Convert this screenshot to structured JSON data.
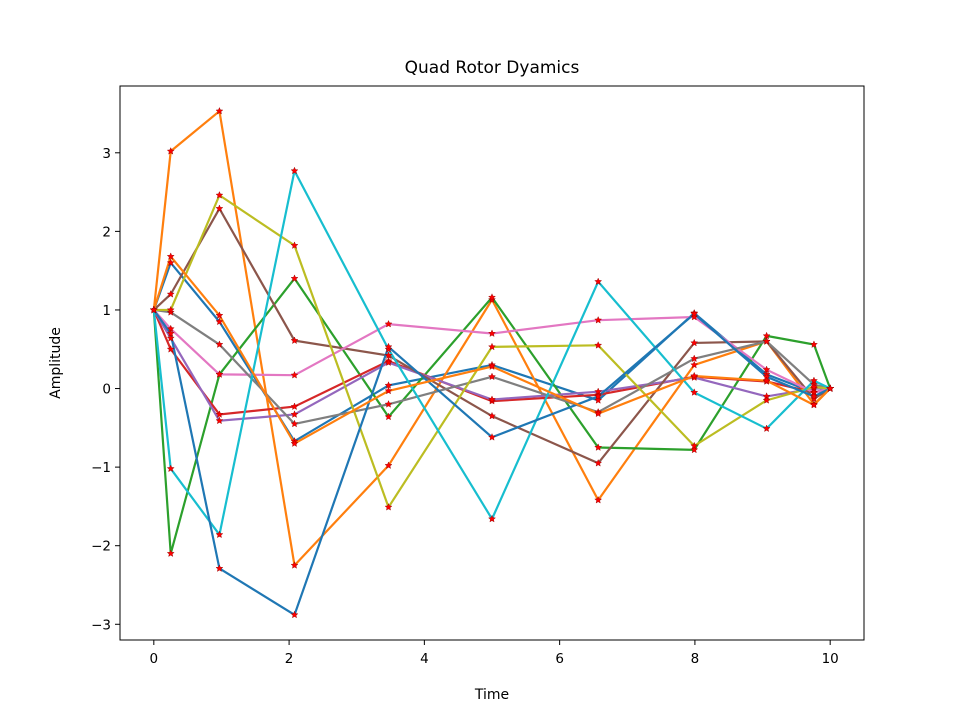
{
  "chart_data": {
    "type": "line",
    "title": "Quad Rotor Dyamics",
    "xlabel": "Time",
    "ylabel": "Amplitude",
    "xlim": [
      -0.5,
      10.5
    ],
    "ylim": [
      -3.2,
      3.85
    ],
    "xticks": [
      0,
      2,
      4,
      6,
      8,
      10
    ],
    "yticks": [
      -3,
      -2,
      -1,
      0,
      1,
      2,
      3
    ],
    "marker_color": "#ff0000",
    "x": [
      0,
      0.25,
      0.97,
      2.08,
      3.47,
      5.0,
      6.57,
      7.99,
      9.06,
      9.76,
      10.0
    ],
    "series": [
      {
        "color": "#1f77b4",
        "values": [
          1,
          1.6,
          0.85,
          -0.67,
          0.04,
          0.3,
          -0.15,
          0.96,
          0.18,
          -0.05,
          0
        ]
      },
      {
        "color": "#ff7f0e",
        "values": [
          1,
          3.02,
          3.53,
          -2.25,
          -0.98,
          1.13,
          -1.42,
          0.3,
          0.6,
          -0.2,
          0
        ]
      },
      {
        "color": "#2ca02c",
        "values": [
          1,
          -2.1,
          0.18,
          1.4,
          -0.36,
          1.16,
          -0.75,
          -0.78,
          0.67,
          0.56,
          0
        ]
      },
      {
        "color": "#d62728",
        "values": [
          1,
          0.5,
          -0.33,
          -0.23,
          0.35,
          -0.16,
          -0.08,
          0.15,
          0.09,
          -0.05,
          0
        ]
      },
      {
        "color": "#9467bd",
        "values": [
          1,
          0.64,
          -0.41,
          -0.33,
          0.33,
          -0.14,
          -0.04,
          0.14,
          -0.1,
          0.0,
          0
        ]
      },
      {
        "color": "#8c564b",
        "values": [
          1,
          1.2,
          2.29,
          0.61,
          0.42,
          -0.35,
          -0.95,
          0.58,
          0.6,
          -0.13,
          0
        ]
      },
      {
        "color": "#e377c2",
        "values": [
          1,
          0.76,
          0.18,
          0.17,
          0.82,
          0.7,
          0.87,
          0.91,
          0.24,
          -0.05,
          0
        ]
      },
      {
        "color": "#7f7f7f",
        "values": [
          1,
          0.97,
          0.56,
          -0.45,
          -0.2,
          0.15,
          -0.3,
          0.38,
          0.6,
          0.05,
          0
        ]
      },
      {
        "color": "#bcbd22",
        "values": [
          1,
          1.0,
          2.46,
          1.82,
          -1.51,
          0.53,
          0.55,
          -0.73,
          -0.15,
          0.02,
          0
        ]
      },
      {
        "color": "#17becf",
        "values": [
          1,
          -1.02,
          -1.86,
          2.77,
          0.5,
          -1.66,
          1.36,
          -0.05,
          -0.51,
          0.1,
          0
        ]
      },
      {
        "color": "#1f77b4",
        "values": [
          1,
          0.7,
          -2.29,
          -2.88,
          0.53,
          -0.62,
          -0.1,
          0.95,
          0.15,
          -0.1,
          0
        ]
      },
      {
        "color": "#ff7f0e",
        "values": [
          1,
          1.68,
          0.93,
          -0.7,
          -0.03,
          0.28,
          -0.32,
          0.16,
          0.1,
          -0.21,
          0
        ]
      }
    ]
  }
}
